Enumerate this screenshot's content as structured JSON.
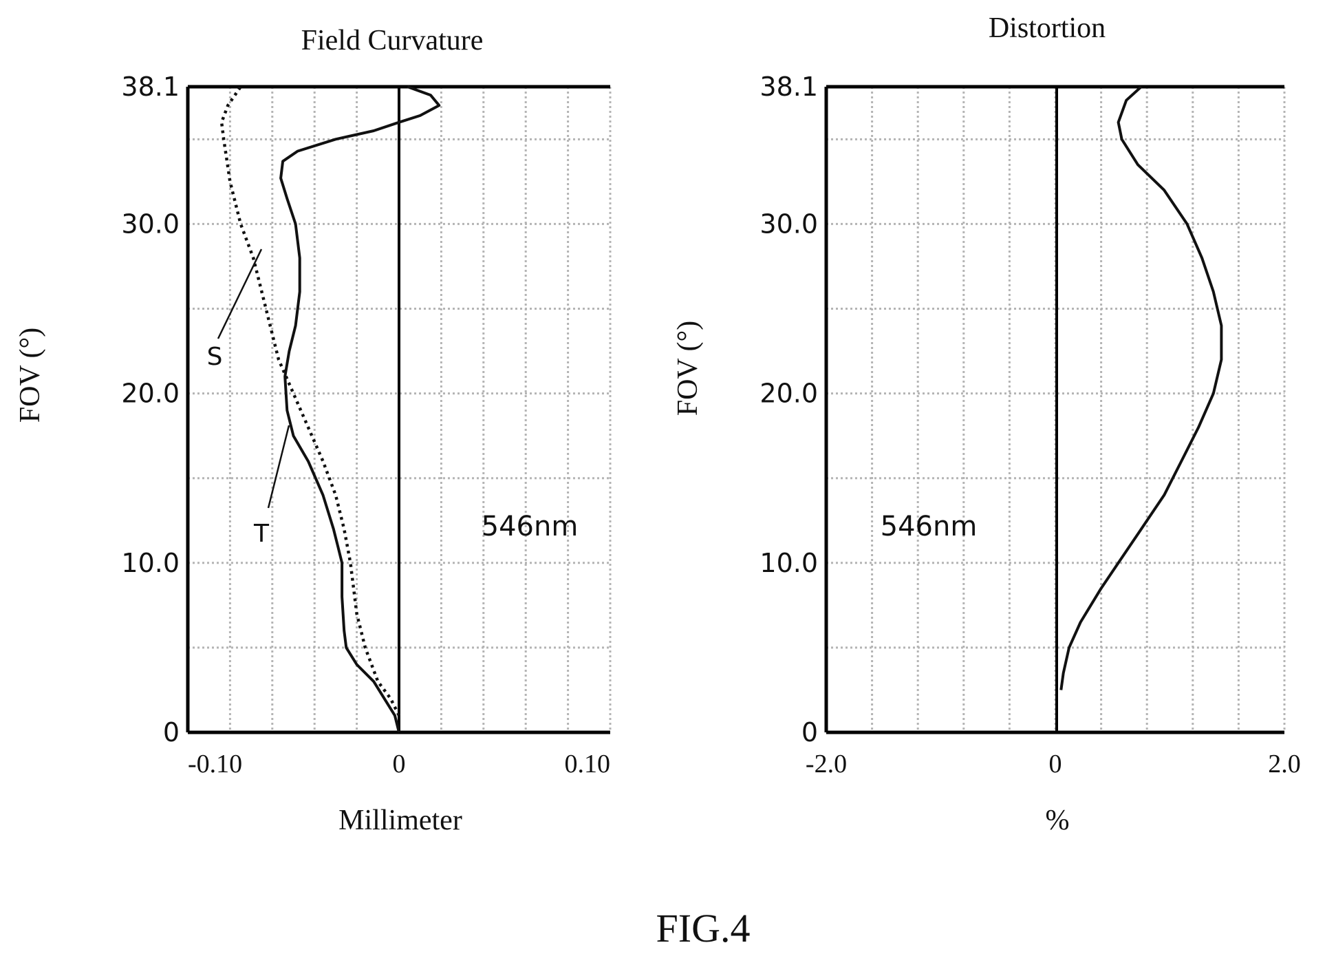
{
  "figure_caption": "FIG.4",
  "chart_data": [
    {
      "type": "line",
      "title": "Field Curvature",
      "xlabel": "Millimeter",
      "ylabel": "FOV (°)",
      "xlim": [
        -0.1,
        0.1
      ],
      "ylim": [
        0,
        38.1
      ],
      "x_ticks": [
        "-0.10",
        "0",
        "0.10"
      ],
      "y_ticks": [
        "0",
        "10.0",
        "20.0",
        "30.0",
        "38.1"
      ],
      "annotation": "546nm",
      "grid": true,
      "series": [
        {
          "name": "T",
          "style": "solid",
          "points": [
            [
              0,
              0
            ],
            [
              -0.002,
              1
            ],
            [
              -0.012,
              3
            ],
            [
              -0.02,
              4
            ],
            [
              -0.025,
              5
            ],
            [
              -0.026,
              6
            ],
            [
              -0.027,
              8
            ],
            [
              -0.027,
              10
            ],
            [
              -0.029,
              11
            ],
            [
              -0.031,
              12
            ],
            [
              -0.036,
              14
            ],
            [
              -0.043,
              16
            ],
            [
              -0.05,
              17.5
            ],
            [
              -0.053,
              19
            ],
            [
              -0.054,
              21
            ],
            [
              -0.052,
              22.5
            ],
            [
              -0.049,
              24
            ],
            [
              -0.047,
              26
            ],
            [
              -0.047,
              28
            ],
            [
              -0.049,
              30
            ],
            [
              -0.053,
              31.5
            ],
            [
              -0.056,
              32.7
            ],
            [
              -0.055,
              33.7
            ],
            [
              -0.048,
              34.3
            ],
            [
              -0.03,
              35
            ],
            [
              -0.012,
              35.5
            ],
            [
              0,
              36
            ],
            [
              0.01,
              36.4
            ],
            [
              0.019,
              37
            ],
            [
              0.015,
              37.6
            ],
            [
              0.004,
              38.1
            ]
          ]
        },
        {
          "name": "S",
          "style": "dotted",
          "points": [
            [
              0,
              1
            ],
            [
              -0.004,
              2
            ],
            [
              -0.01,
              3
            ],
            [
              -0.016,
              5
            ],
            [
              -0.02,
              7
            ],
            [
              -0.023,
              10
            ],
            [
              -0.026,
              12
            ],
            [
              -0.03,
              14
            ],
            [
              -0.036,
              16
            ],
            [
              -0.043,
              18
            ],
            [
              -0.05,
              20
            ],
            [
              -0.057,
              22
            ],
            [
              -0.063,
              25
            ],
            [
              -0.069,
              28
            ],
            [
              -0.075,
              30
            ],
            [
              -0.08,
              32.5
            ],
            [
              -0.083,
              35
            ],
            [
              -0.084,
              36
            ],
            [
              -0.081,
              37
            ],
            [
              -0.075,
              38.1
            ]
          ]
        }
      ]
    },
    {
      "type": "line",
      "title": "Distortion",
      "xlabel": "%",
      "ylabel": "FOV (°)",
      "xlim": [
        -2.0,
        2.0
      ],
      "ylim": [
        0,
        38.1
      ],
      "x_ticks": [
        "-2.0",
        "0",
        "2.0"
      ],
      "y_ticks": [
        "0",
        "10.0",
        "20.0",
        "30.0",
        "38.1"
      ],
      "annotation": "546nm",
      "grid": true,
      "series": [
        {
          "style": "solid",
          "points": [
            [
              0.05,
              2.5
            ],
            [
              0.07,
              3.5
            ],
            [
              0.12,
              5
            ],
            [
              0.22,
              6.5
            ],
            [
              0.4,
              8.5
            ],
            [
              0.55,
              10
            ],
            [
              0.75,
              12
            ],
            [
              0.95,
              14
            ],
            [
              1.1,
              16
            ],
            [
              1.25,
              18
            ],
            [
              1.38,
              20
            ],
            [
              1.45,
              22
            ],
            [
              1.45,
              24
            ],
            [
              1.38,
              26
            ],
            [
              1.28,
              28
            ],
            [
              1.15,
              30
            ],
            [
              0.95,
              32
            ],
            [
              0.72,
              33.5
            ],
            [
              0.58,
              35
            ],
            [
              0.55,
              36
            ],
            [
              0.62,
              37.3
            ],
            [
              0.75,
              38.1
            ]
          ]
        }
      ]
    }
  ]
}
